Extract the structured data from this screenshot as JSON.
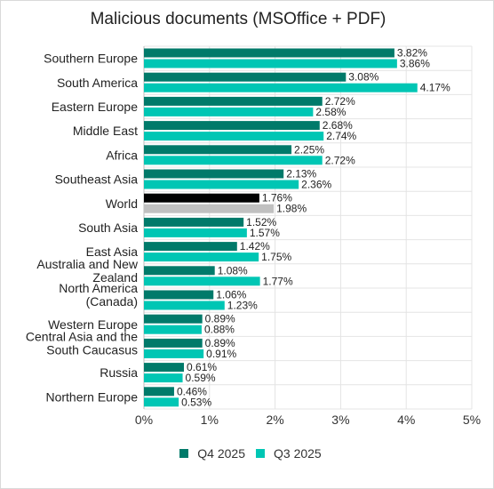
{
  "chart_data": {
    "type": "bar",
    "orientation": "horizontal",
    "title": "Malicious documents (MSOffice + PDF)",
    "categories": [
      "Southern Europe",
      "South America",
      "Eastern Europe",
      "Middle East",
      "Africa",
      "Southeast Asia",
      "World",
      "South Asia",
      "East Asia",
      "Australia and New Zealand",
      "North America (Canada)",
      "Western Europe",
      "Central Asia and the South Caucasus",
      "Russia",
      "Northern Europe"
    ],
    "category_lines": [
      [
        "Southern Europe"
      ],
      [
        "South America"
      ],
      [
        "Eastern Europe"
      ],
      [
        "Middle East"
      ],
      [
        "Africa"
      ],
      [
        "Southeast Asia"
      ],
      [
        "World"
      ],
      [
        "South Asia"
      ],
      [
        "East Asia"
      ],
      [
        "Australia and New",
        "Zealand"
      ],
      [
        "North America",
        "(Canada)"
      ],
      [
        "Western Europe"
      ],
      [
        "Central Asia and the",
        "South Caucasus"
      ],
      [
        "Russia"
      ],
      [
        "Northern Europe"
      ]
    ],
    "series": [
      {
        "name": "Q4 2025",
        "color": "#007a6a",
        "values": [
          3.82,
          3.08,
          2.72,
          2.68,
          2.25,
          2.13,
          1.76,
          1.52,
          1.42,
          1.08,
          1.06,
          0.89,
          0.89,
          0.61,
          0.46
        ],
        "labels": [
          "3.82%",
          "3.08%",
          "2.72%",
          "2.68%",
          "2.25%",
          "2.13%",
          "1.76%",
          "1.52%",
          "1.42%",
          "1.08%",
          "1.06%",
          "0.89%",
          "0.89%",
          "0.61%",
          "0.46%"
        ]
      },
      {
        "name": "Q3 2025",
        "color": "#00c6b4",
        "values": [
          3.86,
          4.17,
          2.58,
          2.74,
          2.72,
          2.36,
          1.98,
          1.57,
          1.75,
          1.77,
          1.23,
          0.88,
          0.91,
          0.59,
          0.53
        ],
        "labels": [
          "3.86%",
          "4.17%",
          "2.58%",
          "2.74%",
          "2.72%",
          "2.36%",
          "1.98%",
          "1.57%",
          "1.75%",
          "1.77%",
          "1.23%",
          "0.88%",
          "0.91%",
          "0.59%",
          "0.53%"
        ]
      }
    ],
    "highlight": {
      "category": "World",
      "colors": [
        "#000000",
        "#c0c0c0"
      ]
    },
    "xlim": [
      0,
      5
    ],
    "xticks": [
      "0%",
      "1%",
      "2%",
      "3%",
      "4%",
      "5%"
    ],
    "grid": true,
    "legend_position": "bottom"
  }
}
